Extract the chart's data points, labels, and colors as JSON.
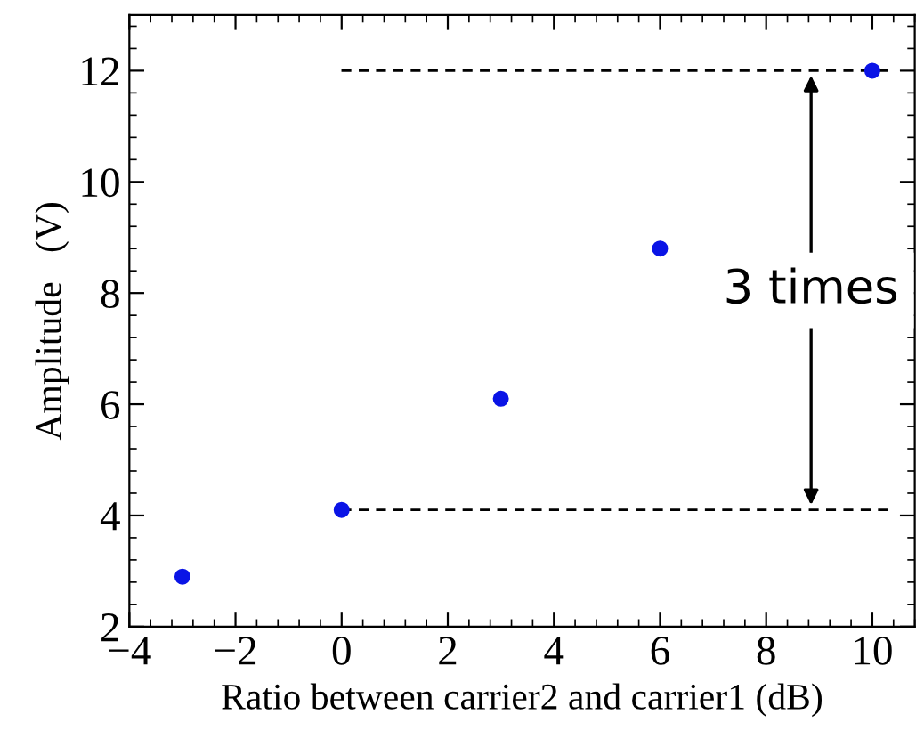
{
  "chart_data": {
    "type": "scatter",
    "xlabel": "Ratio between carrier2 and carrier1 (dB)",
    "ylabel": "Amplitude　(V)",
    "x": [
      -3,
      0,
      3,
      6,
      10
    ],
    "series": [
      {
        "color": "#0a14e6",
        "values": [
          2.9,
          4.1,
          6.1,
          8.8,
          12.0
        ]
      }
    ],
    "xlim": [
      -4,
      10.8
    ],
    "xticks": [
      -4,
      -2,
      0,
      2,
      4,
      6,
      8,
      10
    ],
    "ylim": [
      2,
      13
    ],
    "yticks": [
      2,
      4,
      6,
      8,
      10,
      12
    ],
    "marker": "circle",
    "grid": false,
    "legend": false,
    "ref_lines": [
      {
        "axis": "y",
        "value": 4.1,
        "color": "#000000",
        "line_style": "dashed"
      },
      {
        "axis": "y",
        "value": 12,
        "color": "#000000",
        "line_style": "dashed"
      }
    ],
    "annotations": [
      "3 times"
    ]
  }
}
